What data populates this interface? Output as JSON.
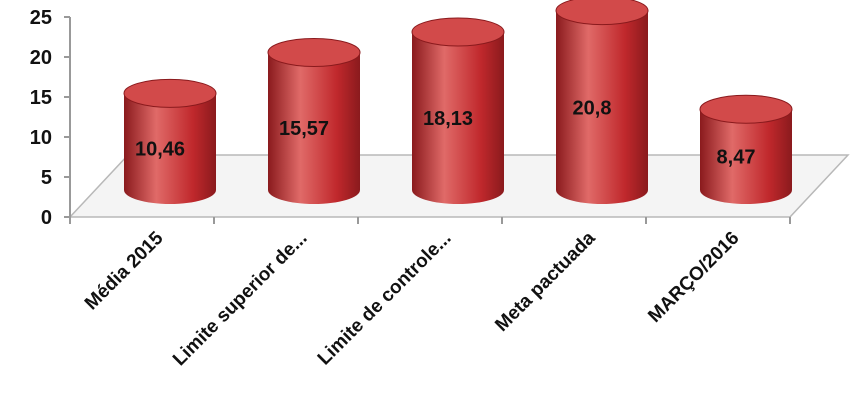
{
  "chart_data": {
    "type": "bar",
    "style": "3d-cylinder",
    "categories": [
      "Média 2015",
      "Limite superior de...",
      "Limite de controle...",
      "Meta pactuada",
      "MARÇO/2016"
    ],
    "values": [
      10.46,
      15.57,
      18.13,
      20.8,
      8.47
    ],
    "data_labels": [
      "10,46",
      "15,57",
      "18,13",
      "20,8",
      "8,47"
    ],
    "title": "",
    "xlabel": "",
    "ylabel": "",
    "ylim": [
      0,
      25
    ],
    "yticks": [
      0,
      5,
      10,
      15,
      20,
      25
    ],
    "grid": false,
    "legend": "none",
    "colors": {
      "bar_body": "#c0282c",
      "bar_light": "#e06a68",
      "bar_dark": "#8a1a1d",
      "bar_top": "#d24a4a",
      "floor": "#f4f4f4",
      "axis": "#999999"
    }
  }
}
